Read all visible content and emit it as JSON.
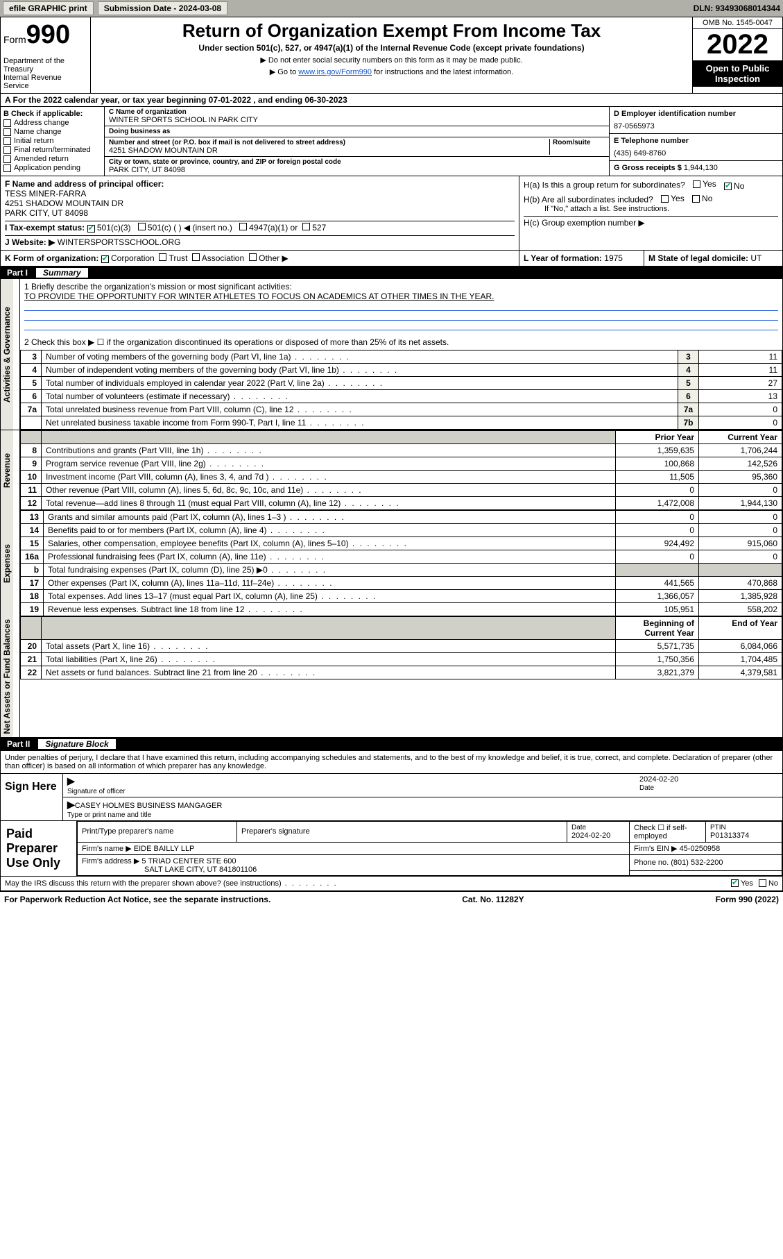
{
  "topbar": {
    "efile": "efile GRAPHIC print",
    "submission_label": "Submission Date - 2024-03-08",
    "dln": "DLN: 93493068014344"
  },
  "header": {
    "form_label": "Form",
    "form_number": "990",
    "dept": "Department of the Treasury\nInternal Revenue Service",
    "title": "Return of Organization Exempt From Income Tax",
    "subtitle": "Under section 501(c), 527, or 4947(a)(1) of the Internal Revenue Code (except private foundations)",
    "note1": "▶ Do not enter social security numbers on this form as it may be made public.",
    "note2_pre": "▶ Go to ",
    "note2_link": "www.irs.gov/Form990",
    "note2_post": " for instructions and the latest information.",
    "omb": "OMB No. 1545-0047",
    "year": "2022",
    "open": "Open to Public Inspection"
  },
  "row_a": "A For the 2022 calendar year, or tax year beginning 07-01-2022   , and ending 06-30-2023",
  "section_b": {
    "label": "B Check if applicable:",
    "items": [
      "Address change",
      "Name change",
      "Initial return",
      "Final return/terminated",
      "Amended return",
      "Application pending"
    ]
  },
  "section_c": {
    "name_label": "C Name of organization",
    "name": "WINTER SPORTS SCHOOL IN PARK CITY",
    "dba_label": "Doing business as",
    "dba": "",
    "addr_label": "Number and street (or P.O. box if mail is not delivered to street address)",
    "room_label": "Room/suite",
    "addr": "4251 SHADOW MOUNTAIN DR",
    "city_label": "City or town, state or province, country, and ZIP or foreign postal code",
    "city": "PARK CITY, UT  84098"
  },
  "section_d": {
    "label": "D Employer identification number",
    "value": "87-0565973"
  },
  "section_e": {
    "label": "E Telephone number",
    "value": "(435) 649-8760"
  },
  "section_g": {
    "label": "G Gross receipts $",
    "value": "1,944,130"
  },
  "section_f": {
    "label": "F Name and address of principal officer:",
    "name": "TESS MINER-FARRA",
    "addr1": "4251 SHADOW MOUNTAIN DR",
    "addr2": "PARK CITY, UT  84098"
  },
  "section_i": {
    "label": "I   Tax-exempt status:",
    "opts": [
      "501(c)(3)",
      "501(c) (  ) ◀ (insert no.)",
      "4947(a)(1) or",
      "527"
    ]
  },
  "section_j": {
    "label": "J   Website: ▶",
    "value": "WINTERSPORTSSCHOOL.ORG"
  },
  "section_h": {
    "ha": "H(a)  Is this a group return for subordinates?",
    "hb": "H(b)  Are all subordinates included?",
    "hb_note": "If \"No,\" attach a list. See instructions.",
    "hc": "H(c)  Group exemption number ▶"
  },
  "section_k": {
    "label": "K Form of organization:",
    "opts": [
      "Corporation",
      "Trust",
      "Association",
      "Other ▶"
    ]
  },
  "section_l": {
    "label": "L Year of formation:",
    "value": "1975"
  },
  "section_m": {
    "label": "M State of legal domicile:",
    "value": "UT"
  },
  "part1": {
    "label": "Part I",
    "title": "Summary"
  },
  "summary": {
    "mission_label": "1  Briefly describe the organization's mission or most significant activities:",
    "mission": "TO PROVIDE THE OPPORTUNITY FOR WINTER ATHLETES TO FOCUS ON ACADEMICS AT OTHER TIMES IN THE YEAR.",
    "line2": "2   Check this box ▶ ☐  if the organization discontinued its operations or disposed of more than 25% of its net assets.",
    "rows_small": [
      {
        "n": "3",
        "d": "Number of voting members of the governing body (Part VI, line 1a)",
        "box": "3",
        "v": "11"
      },
      {
        "n": "4",
        "d": "Number of independent voting members of the governing body (Part VI, line 1b)",
        "box": "4",
        "v": "11"
      },
      {
        "n": "5",
        "d": "Total number of individuals employed in calendar year 2022 (Part V, line 2a)",
        "box": "5",
        "v": "27"
      },
      {
        "n": "6",
        "d": "Total number of volunteers (estimate if necessary)",
        "box": "6",
        "v": "13"
      },
      {
        "n": "7a",
        "d": "Total unrelated business revenue from Part VIII, column (C), line 12",
        "box": "7a",
        "v": "0"
      },
      {
        "n": "",
        "d": "Net unrelated business taxable income from Form 990-T, Part I, line 11",
        "box": "7b",
        "v": "0"
      }
    ],
    "hdr_prior": "Prior Year",
    "hdr_current": "Current Year",
    "revenue": [
      {
        "n": "8",
        "d": "Contributions and grants (Part VIII, line 1h)",
        "p": "1,359,635",
        "c": "1,706,244"
      },
      {
        "n": "9",
        "d": "Program service revenue (Part VIII, line 2g)",
        "p": "100,868",
        "c": "142,526"
      },
      {
        "n": "10",
        "d": "Investment income (Part VIII, column (A), lines 3, 4, and 7d )",
        "p": "11,505",
        "c": "95,360"
      },
      {
        "n": "11",
        "d": "Other revenue (Part VIII, column (A), lines 5, 6d, 8c, 9c, 10c, and 11e)",
        "p": "0",
        "c": "0"
      },
      {
        "n": "12",
        "d": "Total revenue—add lines 8 through 11 (must equal Part VIII, column (A), line 12)",
        "p": "1,472,008",
        "c": "1,944,130"
      }
    ],
    "expenses": [
      {
        "n": "13",
        "d": "Grants and similar amounts paid (Part IX, column (A), lines 1–3 )",
        "p": "0",
        "c": "0"
      },
      {
        "n": "14",
        "d": "Benefits paid to or for members (Part IX, column (A), line 4)",
        "p": "0",
        "c": "0"
      },
      {
        "n": "15",
        "d": "Salaries, other compensation, employee benefits (Part IX, column (A), lines 5–10)",
        "p": "924,492",
        "c": "915,060"
      },
      {
        "n": "16a",
        "d": "Professional fundraising fees (Part IX, column (A), line 11e)",
        "p": "0",
        "c": "0"
      },
      {
        "n": "b",
        "d": "Total fundraising expenses (Part IX, column (D), line 25) ▶0",
        "p": "",
        "c": "",
        "grey": true
      },
      {
        "n": "17",
        "d": "Other expenses (Part IX, column (A), lines 11a–11d, 11f–24e)",
        "p": "441,565",
        "c": "470,868"
      },
      {
        "n": "18",
        "d": "Total expenses. Add lines 13–17 (must equal Part IX, column (A), line 25)",
        "p": "1,366,057",
        "c": "1,385,928"
      },
      {
        "n": "19",
        "d": "Revenue less expenses. Subtract line 18 from line 12",
        "p": "105,951",
        "c": "558,202"
      }
    ],
    "hdr_begin": "Beginning of Current Year",
    "hdr_end": "End of Year",
    "assets": [
      {
        "n": "20",
        "d": "Total assets (Part X, line 16)",
        "p": "5,571,735",
        "c": "6,084,066"
      },
      {
        "n": "21",
        "d": "Total liabilities (Part X, line 26)",
        "p": "1,750,356",
        "c": "1,704,485"
      },
      {
        "n": "22",
        "d": "Net assets or fund balances. Subtract line 21 from line 20",
        "p": "3,821,379",
        "c": "4,379,581"
      }
    ]
  },
  "sidebar": {
    "activities": "Activities & Governance",
    "revenue": "Revenue",
    "expenses": "Expenses",
    "assets": "Net Assets or Fund Balances"
  },
  "part2": {
    "label": "Part II",
    "title": "Signature Block"
  },
  "sig": {
    "declaration": "Under penalties of perjury, I declare that I have examined this return, including accompanying schedules and statements, and to the best of my knowledge and belief, it is true, correct, and complete. Declaration of preparer (other than officer) is based on all information of which preparer has any knowledge.",
    "sign_here": "Sign Here",
    "sig_officer": "Signature of officer",
    "date": "2024-02-20",
    "date_lbl": "Date",
    "name_title": "CASEY HOLMES  BUSINESS MANGAGER",
    "name_title_lbl": "Type or print name and title",
    "paid_label": "Paid Preparer Use Only",
    "prep_hdr": [
      "Print/Type preparer's name",
      "Preparer's signature",
      "Date",
      "",
      "PTIN"
    ],
    "prep_date": "2024-02-20",
    "check_if": "Check ☐ if self-employed",
    "ptin": "P01313374",
    "firm_name_lbl": "Firm's name    ▶",
    "firm_name": "EIDE BAILLY LLP",
    "firm_ein_lbl": "Firm's EIN ▶",
    "firm_ein": "45-0250958",
    "firm_addr_lbl": "Firm's address ▶",
    "firm_addr": "5 TRIAD CENTER STE 600",
    "firm_city": "SALT LAKE CITY, UT  841801106",
    "phone_lbl": "Phone no.",
    "phone": "(801) 532-2200",
    "may_irs": "May the IRS discuss this return with the preparer shown above? (see instructions)",
    "yes": "Yes",
    "no": "No"
  },
  "footer": {
    "paperwork": "For Paperwork Reduction Act Notice, see the separate instructions.",
    "cat": "Cat. No. 11282Y",
    "form": "Form 990 (2022)"
  }
}
